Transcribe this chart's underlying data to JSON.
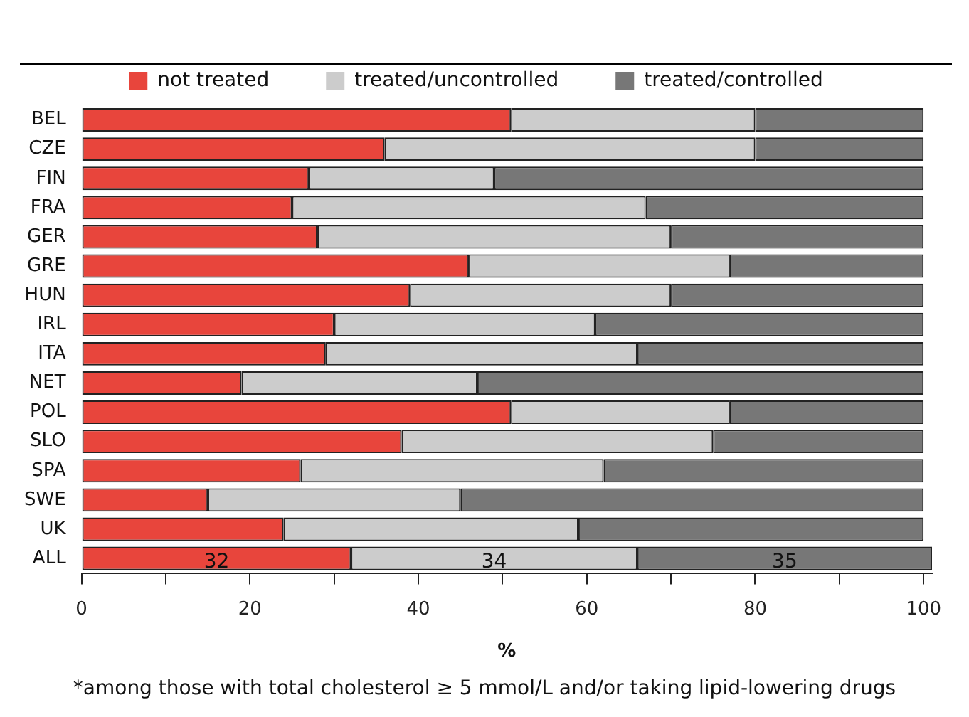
{
  "chart_data": {
    "type": "bar",
    "orientation": "horizontal",
    "stacked": true,
    "categories": [
      "BEL",
      "CZE",
      "FIN",
      "FRA",
      "GER",
      "GRE",
      "HUN",
      "IRL",
      "ITA",
      "NET",
      "POL",
      "SLO",
      "SPA",
      "SWE",
      "UK",
      "ALL"
    ],
    "series": [
      {
        "name": "not treated",
        "color": "#e8453c",
        "values": [
          51,
          36,
          27,
          25,
          28,
          46,
          39,
          30,
          29,
          19,
          51,
          38,
          26,
          15,
          24,
          32
        ],
        "value_labels": [
          null,
          null,
          null,
          null,
          null,
          null,
          null,
          null,
          null,
          null,
          null,
          null,
          null,
          null,
          null,
          "32"
        ]
      },
      {
        "name": "treated/uncontrolled",
        "color": "#cccccc",
        "values": [
          29,
          44,
          22,
          42,
          42,
          31,
          31,
          31,
          37,
          28,
          26,
          37,
          36,
          30,
          35,
          34
        ],
        "value_labels": [
          null,
          null,
          null,
          null,
          null,
          null,
          null,
          null,
          null,
          null,
          null,
          null,
          null,
          null,
          null,
          "34"
        ]
      },
      {
        "name": "treated/controlled",
        "color": "#777777",
        "values": [
          20,
          20,
          51,
          33,
          30,
          23,
          30,
          39,
          34,
          53,
          23,
          25,
          38,
          55,
          41,
          35
        ],
        "value_labels": [
          null,
          null,
          null,
          null,
          null,
          null,
          null,
          null,
          null,
          null,
          null,
          null,
          null,
          null,
          null,
          "35"
        ]
      }
    ],
    "xlim": [
      0,
      101
    ],
    "xticks": [
      0,
      {
        "value": 10,
        "label": null
      },
      20,
      {
        "value": 30,
        "label": null
      },
      40,
      {
        "value": 50,
        "label": null
      },
      60,
      {
        "value": 70,
        "label": null
      },
      80,
      {
        "value": 90,
        "label": null
      },
      100
    ],
    "xlabel": "%",
    "grid": false,
    "legend": "top",
    "annotations": [
      "*among those with total cholesterol ≥ 5 mmol/L and/or taking lipid-lowering drugs"
    ]
  }
}
